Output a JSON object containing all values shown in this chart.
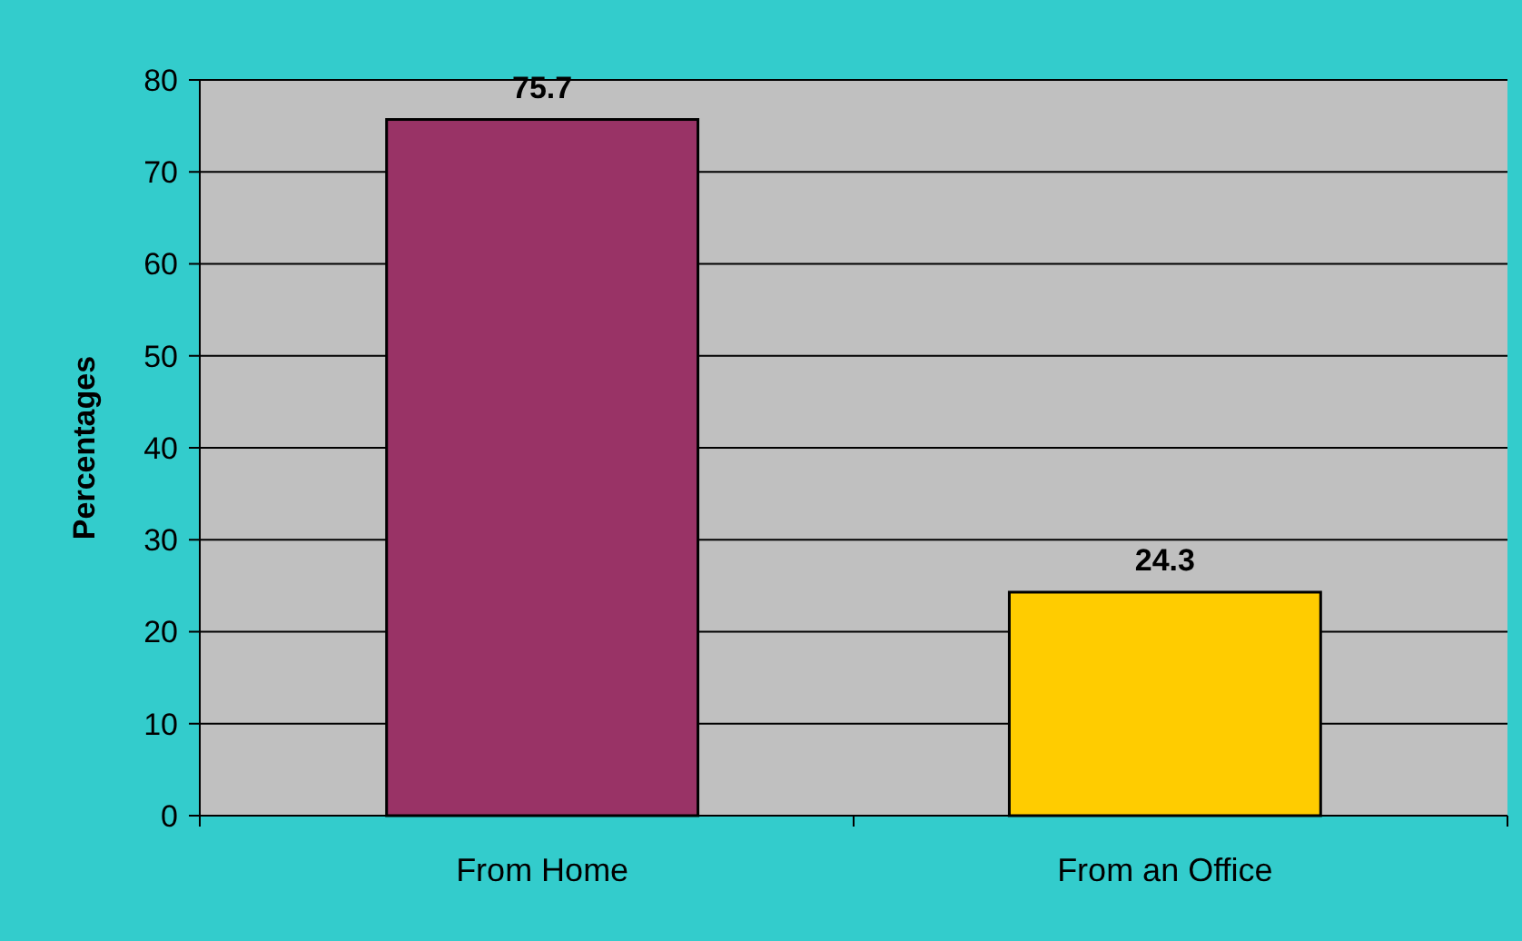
{
  "chart_data": {
    "type": "bar",
    "ylabel": "Percentages",
    "categories": [
      "From Home",
      "From an Office"
    ],
    "values": [
      75.7,
      24.3
    ],
    "colors": [
      "#993366",
      "#ffcc00"
    ],
    "ylim": [
      0,
      80
    ],
    "yticks": [
      0,
      10,
      20,
      30,
      40,
      50,
      60,
      70,
      80
    ],
    "grid": "y",
    "data_labels": true
  }
}
